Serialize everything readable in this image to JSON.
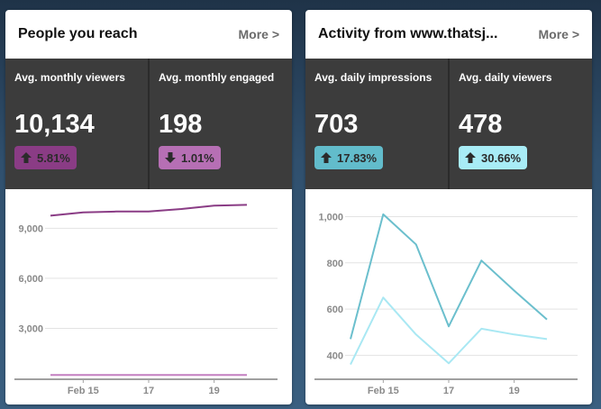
{
  "cards": [
    {
      "title": "People you reach",
      "more_label": "More >",
      "stats": [
        {
          "label": "Avg. monthly viewers",
          "value": "10,134",
          "change": "5.81%",
          "direction": "up",
          "badge_color": "#8a3c85",
          "icon": "arrow-up-icon"
        },
        {
          "label": "Avg. monthly engaged",
          "value": "198",
          "change": "1.01%",
          "direction": "down",
          "badge_color": "#b66fb4",
          "icon": "arrow-down-icon"
        }
      ]
    },
    {
      "title": "Activity from www.thatsj...",
      "more_label": "More >",
      "stats": [
        {
          "label": "Avg. daily impressions",
          "value": "703",
          "change": "17.83%",
          "direction": "up",
          "badge_color": "#62bccb",
          "icon": "arrow-up-icon"
        },
        {
          "label": "Avg. daily viewers",
          "value": "478",
          "change": "30.66%",
          "direction": "up",
          "badge_color": "#a8ecf6",
          "icon": "arrow-up-icon"
        }
      ]
    }
  ],
  "chart_data": [
    {
      "type": "line",
      "x_labels": [
        "Feb 15",
        "17",
        "19"
      ],
      "x": [
        14,
        15,
        16,
        17,
        18,
        19,
        20
      ],
      "ylim": [
        0,
        10800
      ],
      "yticks": [
        3000,
        6000,
        9000
      ],
      "ytick_labels": [
        "3,000",
        "6,000",
        "9,000"
      ],
      "grid": true,
      "series": [
        {
          "color": "#8a3c85",
          "values": [
            9750,
            9950,
            10000,
            10000,
            10150,
            10350,
            10400
          ]
        },
        {
          "color": "#c37fc0",
          "values": [
            200,
            200,
            200,
            200,
            200,
            200,
            200
          ]
        }
      ]
    },
    {
      "type": "line",
      "x_labels": [
        "Feb 15",
        "17",
        "19"
      ],
      "x": [
        14,
        15,
        16,
        17,
        18,
        19,
        20
      ],
      "ylim": [
        300,
        1080
      ],
      "yticks": [
        400,
        600,
        800,
        1000
      ],
      "ytick_labels": [
        "400",
        "600",
        "800",
        "1,000"
      ],
      "grid": true,
      "series": [
        {
          "color": "#6bbfcd",
          "values": [
            470,
            1010,
            880,
            525,
            810,
            680,
            555
          ]
        },
        {
          "color": "#a9e8f3",
          "values": [
            360,
            650,
            490,
            365,
            515,
            490,
            470
          ]
        }
      ]
    }
  ]
}
